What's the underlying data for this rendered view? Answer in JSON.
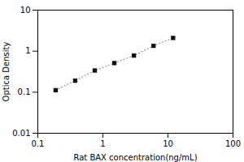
{
  "chart_data": {
    "type": "line",
    "title": "",
    "x_label": "Rat BAX concentration(ng/mL)",
    "y_label": "Optica Density",
    "x": [
      0.188,
      0.375,
      0.75,
      1.5,
      3.0,
      6.0,
      12.0
    ],
    "values": [
      0.112,
      0.191,
      0.338,
      0.513,
      0.782,
      1.35,
      2.1
    ],
    "log": true,
    "xlim": [
      0.1,
      100
    ],
    "ylim": [
      0.01,
      10
    ],
    "xticks": [
      0.1,
      1,
      10,
      100
    ],
    "yticks": [
      0.01,
      0.1,
      1,
      10
    ],
    "color": "#111111",
    "marker": "square",
    "line_style": "dotted",
    "grid": false
  }
}
